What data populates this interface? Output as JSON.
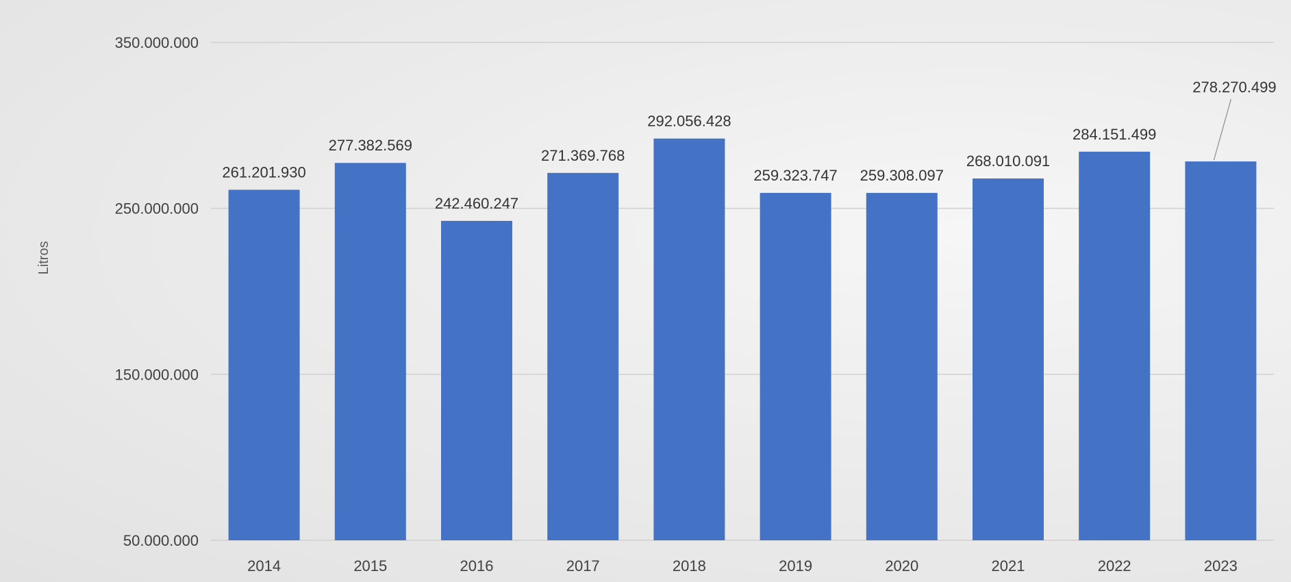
{
  "chart_data": {
    "type": "bar",
    "title": "",
    "xlabel": "",
    "ylabel": "Litros",
    "categories": [
      "2014",
      "2015",
      "2016",
      "2017",
      "2018",
      "2019",
      "2020",
      "2021",
      "2022",
      "2023"
    ],
    "values": [
      261201930,
      277382569,
      242460247,
      271369768,
      292056428,
      259323747,
      259308097,
      268010091,
      284151499,
      278270499
    ],
    "value_labels": [
      "261.201.930",
      "277.382.569",
      "242.460.247",
      "271.369.768",
      "292.056.428",
      "259.323.747",
      "259.308.097",
      "268.010.091",
      "284.151.499",
      "278.270.499"
    ],
    "ylim": [
      50000000,
      350000000
    ],
    "yticks": [
      50000000,
      150000000,
      250000000,
      350000000
    ],
    "ytick_labels": [
      "50.000.000",
      "150.000.000",
      "250.000.000",
      "350.000.000"
    ],
    "grid": true,
    "legend": "none",
    "bar_color": "#4472C4",
    "grid_color": "#d0d0d0"
  }
}
